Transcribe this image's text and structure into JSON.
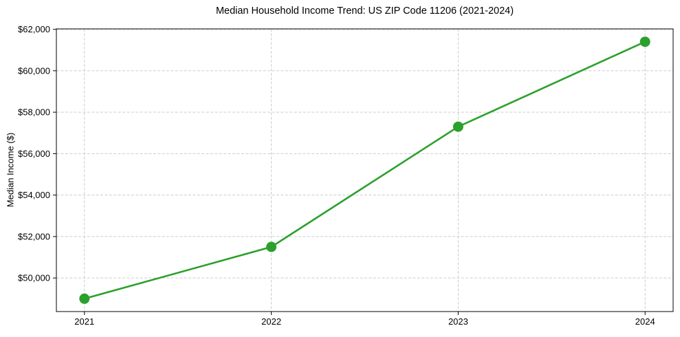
{
  "page": {
    "background": "#ffffff"
  },
  "chart_data": {
    "type": "line",
    "title": "Median Household Income Trend: US ZIP Code 11206 (2021-2024)",
    "xlabel": "",
    "ylabel": "Median Income ($)",
    "x": [
      2021,
      2022,
      2023,
      2024
    ],
    "values": [
      49000,
      51500,
      57300,
      61400
    ],
    "xticks": [
      {
        "value": 2021,
        "label": "2021"
      },
      {
        "value": 2022,
        "label": "2022"
      },
      {
        "value": 2023,
        "label": "2023"
      },
      {
        "value": 2024,
        "label": "2024"
      }
    ],
    "yticks": [
      {
        "value": 50000,
        "label": "$50,000"
      },
      {
        "value": 52000,
        "label": "$52,000"
      },
      {
        "value": 54000,
        "label": "$54,000"
      },
      {
        "value": 56000,
        "label": "$56,000"
      },
      {
        "value": 58000,
        "label": "$58,000"
      },
      {
        "value": 60000,
        "label": "$60,000"
      },
      {
        "value": 62000,
        "label": "$62,000"
      }
    ],
    "xlim": [
      2020.85,
      2024.15
    ],
    "ylim": [
      48380,
      62020
    ],
    "grid": true,
    "grid_linestyle": "dashed",
    "legend_position": "none",
    "marker": "circle",
    "colors": {
      "line": "#2ca02c",
      "marker": "#2ca02c",
      "grid": "#cccccc",
      "axis": "#000000",
      "text": "#000000",
      "background": "#ffffff"
    }
  }
}
